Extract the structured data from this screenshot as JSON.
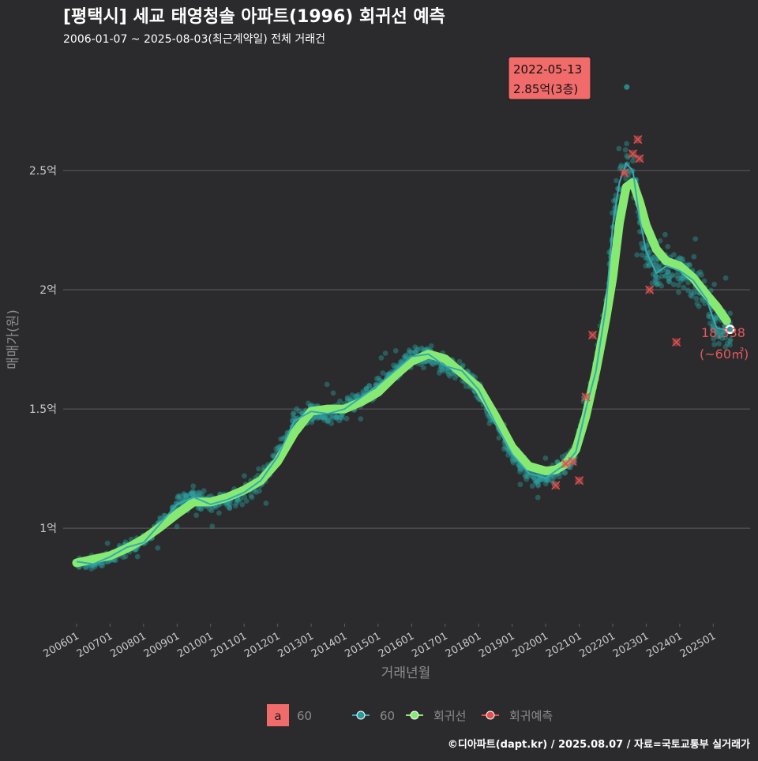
{
  "chart_data": {
    "type": "scatter",
    "title": "[평택시] 세교 태영청솔 아파트(1996) 회귀선 예측",
    "subtitle": "2006-01-07 ~ 2025-08-03(최근계약일) 전체 거래건",
    "xlabel": "거래년월",
    "ylabel": "매매가(원)",
    "ylim": [
      0.6,
      2.95
    ],
    "xlim": [
      2005.6,
      2026.1
    ],
    "yticks": [
      {
        "value": 1.0,
        "label": "1억"
      },
      {
        "value": 1.5,
        "label": "1.5억"
      },
      {
        "value": 2.0,
        "label": "2억"
      },
      {
        "value": 2.5,
        "label": "2.5억"
      }
    ],
    "xticks": [
      {
        "value": 2006,
        "label": "200601"
      },
      {
        "value": 2007,
        "label": "200701"
      },
      {
        "value": 2008,
        "label": "200801"
      },
      {
        "value": 2009,
        "label": "200901"
      },
      {
        "value": 2010,
        "label": "201001"
      },
      {
        "value": 2011,
        "label": "201101"
      },
      {
        "value": 2012,
        "label": "201201"
      },
      {
        "value": 2013,
        "label": "201301"
      },
      {
        "value": 2014,
        "label": "201401"
      },
      {
        "value": 2015,
        "label": "201501"
      },
      {
        "value": 2016,
        "label": "201601"
      },
      {
        "value": 2017,
        "label": "201701"
      },
      {
        "value": 2018,
        "label": "201801"
      },
      {
        "value": 2019,
        "label": "201901"
      },
      {
        "value": 2020,
        "label": "202001"
      },
      {
        "value": 2021,
        "label": "202101"
      },
      {
        "value": 2022,
        "label": "202201"
      },
      {
        "value": 2023,
        "label": "202301"
      },
      {
        "value": 2024,
        "label": "202401"
      },
      {
        "value": 2025,
        "label": "202501"
      }
    ],
    "grid": true,
    "legend_position": "bottom",
    "colors": {
      "background": "#2b2b2d",
      "grid": "#5e5e60",
      "trades": "#2a9d9a",
      "trend_line": "#37a9b0",
      "regression": "#86ea72",
      "predicted": "#e0504f",
      "annotation_fill": "#f26b6b",
      "end_label": "#e05a5a",
      "text_muted": "#c9c9c9"
    },
    "regression_series": {
      "name": "회귀선",
      "x": [
        2006.0,
        2006.5,
        2007.0,
        2007.5,
        2008.0,
        2008.5,
        2009.0,
        2009.5,
        2010.0,
        2010.5,
        2011.0,
        2011.5,
        2012.0,
        2012.5,
        2013.0,
        2013.5,
        2014.0,
        2014.5,
        2015.0,
        2015.5,
        2016.0,
        2016.5,
        2017.0,
        2017.5,
        2018.0,
        2018.5,
        2019.0,
        2019.5,
        2020.0,
        2020.3,
        2020.6,
        2020.9,
        2021.2,
        2021.5,
        2021.8,
        2022.0,
        2022.2,
        2022.4,
        2022.6,
        2022.8,
        2023.0,
        2023.3,
        2023.6,
        2024.0,
        2024.4,
        2024.8,
        2025.1,
        2025.4
      ],
      "y": [
        0.855,
        0.87,
        0.885,
        0.915,
        0.955,
        1.005,
        1.06,
        1.11,
        1.11,
        1.13,
        1.16,
        1.2,
        1.28,
        1.4,
        1.49,
        1.5,
        1.5,
        1.53,
        1.57,
        1.64,
        1.7,
        1.73,
        1.71,
        1.65,
        1.59,
        1.47,
        1.34,
        1.26,
        1.24,
        1.245,
        1.27,
        1.33,
        1.47,
        1.66,
        1.88,
        2.05,
        2.28,
        2.43,
        2.45,
        2.37,
        2.27,
        2.17,
        2.12,
        2.1,
        2.05,
        1.98,
        1.93,
        1.87
      ]
    },
    "trend_series": {
      "name": "60",
      "x": [
        2006.0,
        2006.5,
        2007.0,
        2007.5,
        2008.0,
        2008.5,
        2009.0,
        2009.5,
        2010.0,
        2010.5,
        2011.0,
        2011.5,
        2012.0,
        2012.5,
        2013.0,
        2013.5,
        2014.0,
        2014.5,
        2015.0,
        2015.5,
        2016.0,
        2016.5,
        2017.0,
        2017.5,
        2018.0,
        2018.5,
        2019.0,
        2019.5,
        2020.0,
        2020.3,
        2020.6,
        2020.9,
        2021.2,
        2021.5,
        2021.8,
        2022.0,
        2022.2,
        2022.4,
        2022.6,
        2022.8,
        2023.0,
        2023.3,
        2023.6,
        2024.0,
        2024.4,
        2024.8,
        2025.1,
        2025.4
      ],
      "y": [
        0.86,
        0.85,
        0.88,
        0.92,
        0.94,
        1.02,
        1.1,
        1.13,
        1.1,
        1.12,
        1.15,
        1.2,
        1.3,
        1.45,
        1.49,
        1.48,
        1.5,
        1.55,
        1.6,
        1.66,
        1.72,
        1.73,
        1.68,
        1.66,
        1.58,
        1.44,
        1.31,
        1.23,
        1.21,
        1.24,
        1.27,
        1.32,
        1.5,
        1.66,
        1.93,
        2.27,
        2.45,
        2.53,
        2.5,
        2.3,
        2.16,
        2.07,
        2.1,
        2.08,
        2.04,
        1.96,
        1.84,
        1.83
      ]
    },
    "predicted_points": {
      "name": "회귀예측",
      "x": [
        2020.3,
        2020.6,
        2020.8,
        2021.0,
        2021.2,
        2021.4,
        2022.35,
        2022.6,
        2022.75,
        2022.8,
        2023.1,
        2023.9
      ],
      "y": [
        1.18,
        1.27,
        1.28,
        1.2,
        1.55,
        1.81,
        2.49,
        2.57,
        2.63,
        2.55,
        2.0,
        1.78
      ]
    },
    "highlight": {
      "x": 2022.42,
      "y": 2.85,
      "date": "2022-05-13",
      "price": "2.85억(3층)"
    },
    "last_point": {
      "x": 2025.5,
      "y": 1.834,
      "value_label": "18,338",
      "area_label": "(~60㎡)"
    },
    "legend": {
      "box_letter": "a",
      "box_label": "60",
      "items": [
        "60",
        "회귀선",
        "회귀예측"
      ]
    },
    "footer": "©디아파트(dapt.kr) / 2025.08.07 / 자료=국토교통부 실거래가"
  }
}
